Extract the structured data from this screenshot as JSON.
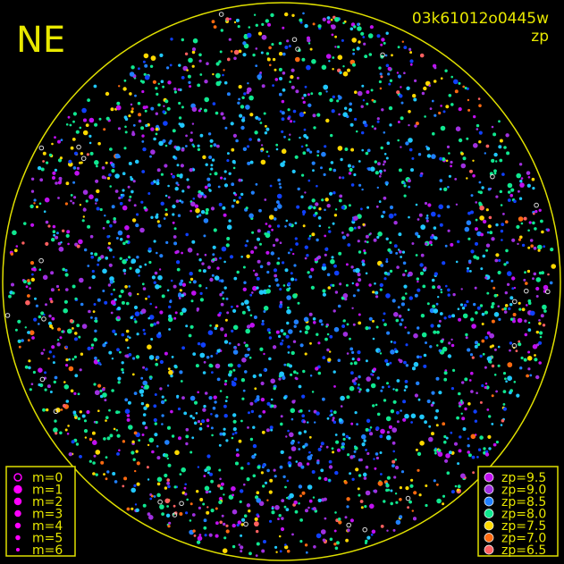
{
  "corner_label": "NE",
  "frame_id": "03k61012o0445w",
  "color_mode": "zp",
  "colors": {
    "frame": "#e0e000",
    "background": "#000000",
    "marker_legend": "#ff00ff"
  },
  "magnitude_legend": [
    {
      "label": "m=0",
      "size": 0
    },
    {
      "label": "m=1",
      "size": 1
    },
    {
      "label": "m=2",
      "size": 2
    },
    {
      "label": "m=3",
      "size": 3
    },
    {
      "label": "m=4",
      "size": 4
    },
    {
      "label": "m=5",
      "size": 5
    },
    {
      "label": "m=6",
      "size": 6
    }
  ],
  "zp_legend": [
    {
      "label": "zp=9.5",
      "color": "#c010f0"
    },
    {
      "label": "zp=9.0",
      "color": "#a030e0"
    },
    {
      "label": "zp=8.5",
      "color": "#2080ff"
    },
    {
      "label": "zp=8.0",
      "color": "#10e890"
    },
    {
      "label": "zp=7.5",
      "color": "#ffd800"
    },
    {
      "label": "zp=7.0",
      "color": "#ff6a10"
    },
    {
      "label": "zp=6.5",
      "color": "#ff6060"
    }
  ]
}
